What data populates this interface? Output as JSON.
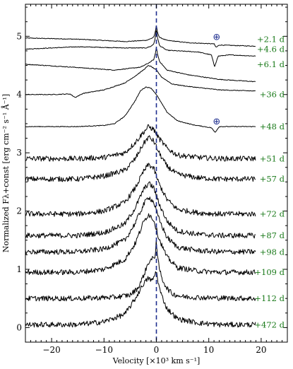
{
  "chart_data": {
    "type": "line",
    "title": "",
    "xlabel": "Velocity [×10³ km s⁻¹]",
    "ylabel": "Normalized Fλ+const [erg cm⁻² s⁻¹ Å⁻¹]",
    "xlim": [
      -25,
      25
    ],
    "ylim": [
      -0.25,
      5.55
    ],
    "x_ticks": [
      -20,
      -10,
      0,
      10,
      20
    ],
    "y_ticks": [
      0,
      1,
      2,
      3,
      4,
      5
    ],
    "grid": false,
    "reference_line": {
      "x": 0,
      "style": "dashed",
      "color": "#1f2f8f"
    },
    "telluric_marker": {
      "symbol": "⊕",
      "color": "#1f2f8f"
    },
    "telluric_marks": [
      {
        "x": 11.5,
        "y": 5.0
      },
      {
        "x": 11.5,
        "y": 3.55
      }
    ],
    "x_range_data": [
      -25,
      19
    ],
    "label_color": "#1a7a1a",
    "series": [
      {
        "label": "+2.1 d",
        "offset": 4.95,
        "x": [
          -25,
          -15,
          -6,
          -2,
          -1,
          -0.5,
          -0.2,
          0,
          0.2,
          0.6,
          2,
          6,
          11,
          11.4,
          12,
          19
        ],
        "y": [
          0.02,
          0.0,
          -0.04,
          -0.02,
          0.01,
          0.04,
          0.12,
          0.25,
          0.12,
          0.03,
          -0.02,
          -0.06,
          -0.08,
          -0.14,
          -0.1,
          -0.12
        ]
      },
      {
        "label": "+4.6 d",
        "offset": 4.78,
        "x": [
          -25,
          -15,
          -6,
          -2,
          -1,
          -0.5,
          -0.2,
          0,
          0.2,
          0.6,
          2,
          8,
          10.5,
          11.1,
          11.8,
          14,
          19
        ],
        "y": [
          0.0,
          0.04,
          0.02,
          0.02,
          0.05,
          0.09,
          0.2,
          0.35,
          0.2,
          0.06,
          -0.02,
          -0.05,
          -0.1,
          -0.3,
          -0.12,
          -0.1,
          -0.12
        ]
      },
      {
        "label": "+6.1 d",
        "offset": 4.52,
        "x": [
          -25,
          -16,
          -8,
          -3,
          -1.5,
          -0.5,
          -0.2,
          0,
          0.2,
          0.6,
          2,
          6,
          12,
          19
        ],
        "y": [
          0.0,
          -0.05,
          -0.1,
          -0.05,
          0.02,
          0.08,
          0.18,
          0.3,
          0.18,
          0.05,
          -0.1,
          -0.18,
          -0.26,
          -0.3
        ]
      },
      {
        "label": "+36 d",
        "offset": 4.0,
        "x": [
          -25,
          -20,
          -16.5,
          -15.5,
          -14,
          -10,
          -6,
          -4,
          -2.5,
          -1.5,
          -1,
          0,
          1,
          3,
          6,
          12,
          19
        ],
        "y": [
          0.0,
          0.0,
          0.01,
          -0.05,
          0.02,
          0.08,
          0.2,
          0.32,
          0.42,
          0.5,
          0.48,
          0.42,
          0.3,
          0.18,
          0.14,
          0.08,
          0.06
        ]
      },
      {
        "label": "+48 d",
        "offset": 3.45,
        "x": [
          -25,
          -15,
          -10,
          -8,
          -6,
          -4,
          -3,
          -2,
          -1,
          0,
          1,
          2,
          4,
          7,
          10.5,
          11.2,
          12,
          19
        ],
        "y": [
          0.0,
          0.0,
          0.02,
          0.05,
          0.18,
          0.45,
          0.62,
          0.68,
          0.66,
          0.55,
          0.4,
          0.25,
          0.1,
          0.03,
          -0.02,
          -0.1,
          0.0,
          0.0
        ]
      },
      {
        "label": "+51 d",
        "offset": 2.9,
        "x": [
          -25,
          -15,
          -10,
          -6,
          -4,
          -2.5,
          -1.5,
          -0.5,
          0.5,
          2,
          4,
          8,
          12,
          19
        ],
        "y": [
          0.0,
          0.0,
          0.02,
          0.1,
          0.28,
          0.45,
          0.55,
          0.5,
          0.35,
          0.18,
          0.06,
          0.02,
          0.0,
          0.0
        ]
      },
      {
        "label": "+57 d",
        "offset": 2.55,
        "x": [
          -25,
          -15,
          -10,
          -6,
          -4,
          -2.5,
          -1.5,
          -0.5,
          0.5,
          2,
          4,
          8,
          12,
          19
        ],
        "y": [
          0.0,
          0.0,
          0.05,
          0.15,
          0.35,
          0.6,
          0.72,
          0.65,
          0.45,
          0.22,
          0.08,
          0.02,
          0.0,
          0.0
        ]
      },
      {
        "label": "+72 d",
        "offset": 1.95,
        "x": [
          -25,
          -15,
          -10,
          -6,
          -4,
          -2.5,
          -1.5,
          -0.5,
          0.5,
          2,
          4,
          8,
          12,
          19
        ],
        "y": [
          0.0,
          0.0,
          0.05,
          0.2,
          0.45,
          0.72,
          0.85,
          0.78,
          0.52,
          0.25,
          0.08,
          0.02,
          0.0,
          0.0
        ]
      },
      {
        "label": "+87 d",
        "offset": 1.58,
        "x": [
          -25,
          -15,
          -10,
          -6,
          -4,
          -2.5,
          -1.5,
          -0.5,
          0.5,
          2,
          4,
          8,
          12,
          19
        ],
        "y": [
          0.0,
          0.0,
          0.05,
          0.2,
          0.48,
          0.78,
          0.9,
          0.82,
          0.55,
          0.25,
          0.08,
          0.02,
          0.0,
          0.0
        ]
      },
      {
        "label": "+98 d",
        "offset": 1.3,
        "x": [
          -25,
          -15,
          -10,
          -6,
          -4,
          -2.5,
          -1.5,
          -0.5,
          0.5,
          2,
          4,
          8,
          12,
          19
        ],
        "y": [
          0.0,
          0.0,
          0.05,
          0.2,
          0.5,
          0.8,
          0.95,
          0.85,
          0.56,
          0.25,
          0.08,
          0.02,
          0.0,
          0.0
        ]
      },
      {
        "label": "+109 d",
        "offset": 0.95,
        "x": [
          -25,
          -15,
          -10,
          -6,
          -4,
          -2.5,
          -1.5,
          -0.5,
          0.5,
          2,
          4,
          8,
          12,
          19
        ],
        "y": [
          0.0,
          0.0,
          0.05,
          0.22,
          0.5,
          0.85,
          1.0,
          0.9,
          0.58,
          0.26,
          0.08,
          0.02,
          0.0,
          0.0
        ]
      },
      {
        "label": "+112 d",
        "offset": 0.5,
        "x": [
          -25,
          -15,
          -8,
          -5,
          -3.5,
          -2.5,
          -1.5,
          -0.5,
          -0.2,
          0,
          0.2,
          0.5,
          1,
          2,
          3,
          5,
          10,
          19
        ],
        "y": [
          0.0,
          0.0,
          0.02,
          0.06,
          0.18,
          0.38,
          0.62,
          0.7,
          0.75,
          1.05,
          0.7,
          0.55,
          0.35,
          0.18,
          0.08,
          0.03,
          0.01,
          0.0
        ]
      },
      {
        "label": "+472 d",
        "offset": 0.05,
        "x": [
          -25,
          -15,
          -10,
          -6,
          -4,
          -2.5,
          -1.5,
          -0.8,
          0,
          0.5,
          1,
          2,
          4,
          8,
          12,
          19
        ],
        "y": [
          0.0,
          0.0,
          0.05,
          0.18,
          0.45,
          0.7,
          0.8,
          0.75,
          0.92,
          0.65,
          0.5,
          0.28,
          0.1,
          0.03,
          0.0,
          0.0
        ]
      }
    ]
  }
}
